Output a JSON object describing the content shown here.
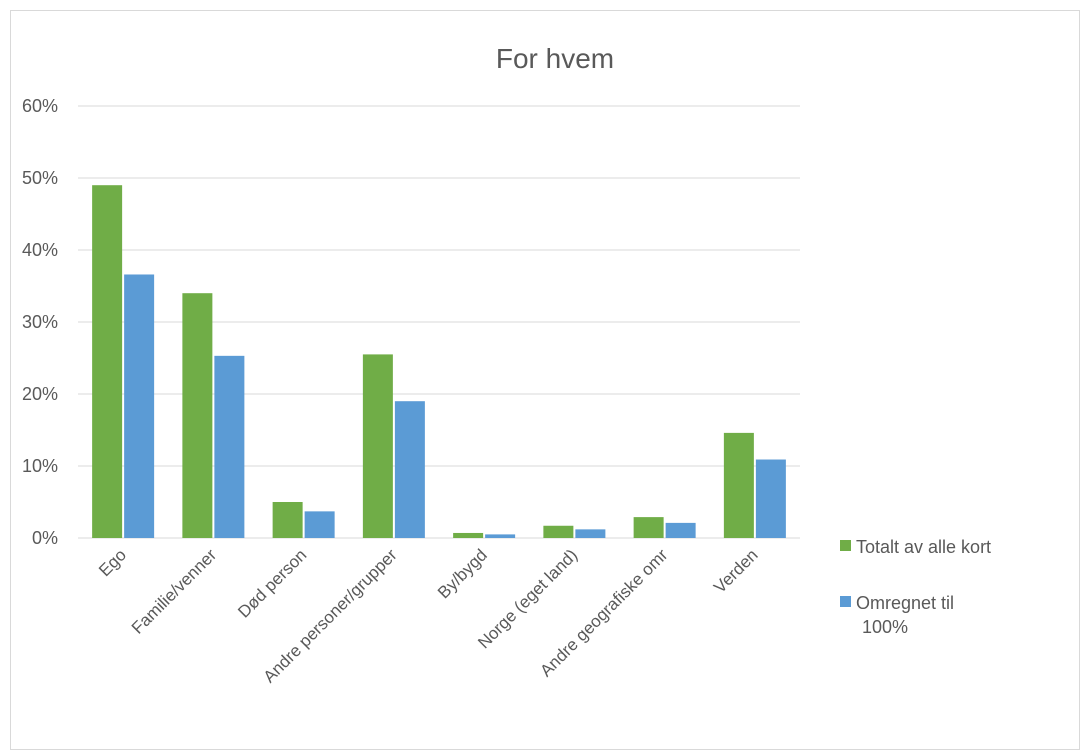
{
  "chart_data": {
    "type": "bar",
    "title": "For hvem",
    "xlabel": "",
    "ylabel": "",
    "ylim": [
      0,
      0.6
    ],
    "y_ticks": [
      "0%",
      "10%",
      "20%",
      "30%",
      "40%",
      "50%",
      "60%"
    ],
    "y_tick_values": [
      0,
      0.1,
      0.2,
      0.3,
      0.4,
      0.5,
      0.6
    ],
    "categories": [
      "Ego",
      "Familie/venner",
      "Død person",
      "Andre personer/grupper",
      "By/bygd",
      "Norge (eget land)",
      "Andre geografiske omr",
      "Verden"
    ],
    "series": [
      {
        "name": "Totalt av alle kort",
        "color": "#70ad47",
        "values": [
          0.49,
          0.34,
          0.05,
          0.255,
          0.007,
          0.017,
          0.029,
          0.146
        ]
      },
      {
        "name": "Omregnet til 100%",
        "color": "#5b9bd5",
        "values": [
          0.366,
          0.253,
          0.037,
          0.19,
          0.005,
          0.012,
          0.021,
          0.109
        ]
      }
    ],
    "grid": true,
    "legend": "right"
  }
}
